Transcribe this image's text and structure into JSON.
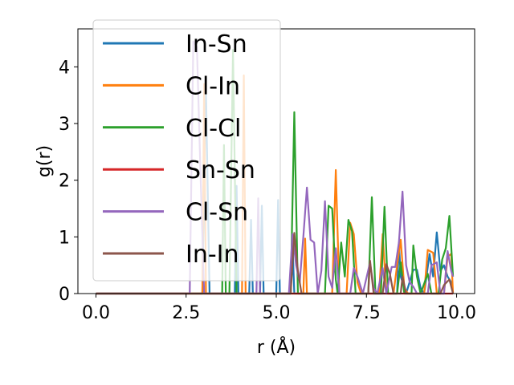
{
  "chart_data": {
    "type": "line",
    "xlabel": "r (Å)",
    "ylabel": "g(r)",
    "xlim": [
      -0.5,
      10.5
    ],
    "ylim": [
      0,
      4.67
    ],
    "xticks": [
      0.0,
      2.5,
      5.0,
      7.5,
      10.0
    ],
    "xtick_labels": [
      "0.0",
      "2.5",
      "5.0",
      "7.5",
      "10.0"
    ],
    "yticks": [
      0,
      1,
      2,
      3,
      4
    ],
    "ytick_labels": [
      "0",
      "1",
      "2",
      "3",
      "4"
    ],
    "grid": false,
    "legend_position": "top-left",
    "series": [
      {
        "name": "In-Sn",
        "color": "#1f77b4",
        "points": [
          [
            0,
            0
          ],
          [
            2.95,
            0
          ],
          [
            3.05,
            3.6
          ],
          [
            3.15,
            0
          ],
          [
            3.85,
            0
          ],
          [
            3.9,
            1.9
          ],
          [
            3.95,
            0
          ],
          [
            4.25,
            0
          ],
          [
            4.3,
            1.3
          ],
          [
            4.35,
            0
          ],
          [
            4.55,
            0
          ],
          [
            4.6,
            1.55
          ],
          [
            4.65,
            0
          ],
          [
            5.0,
            0
          ],
          [
            5.05,
            1.65
          ],
          [
            5.1,
            0
          ],
          [
            5.4,
            0
          ],
          [
            5.45,
            0.9
          ],
          [
            5.5,
            0
          ],
          [
            8.35,
            0
          ],
          [
            8.4,
            0.9
          ],
          [
            8.45,
            0.3
          ],
          [
            8.6,
            0
          ],
          [
            8.8,
            0.42
          ],
          [
            8.9,
            0.42
          ],
          [
            9.0,
            0.1
          ],
          [
            9.1,
            0
          ],
          [
            9.25,
            0.7
          ],
          [
            9.35,
            0.3
          ],
          [
            9.45,
            1.08
          ],
          [
            9.55,
            0.4
          ],
          [
            9.65,
            0.5
          ],
          [
            9.75,
            0.3
          ],
          [
            9.85,
            0.2
          ],
          [
            9.9,
            0
          ]
        ]
      },
      {
        "name": "Cl-In",
        "color": "#ff7f0e",
        "points": [
          [
            0,
            0
          ],
          [
            2.95,
            0
          ],
          [
            3.0,
            3.7
          ],
          [
            3.05,
            0
          ],
          [
            4.05,
            0
          ],
          [
            4.1,
            3.85
          ],
          [
            4.15,
            0
          ],
          [
            5.75,
            0
          ],
          [
            5.8,
            0.97
          ],
          [
            5.85,
            0
          ],
          [
            6.55,
            0
          ],
          [
            6.65,
            2.18
          ],
          [
            6.75,
            0
          ],
          [
            6.95,
            0
          ],
          [
            7.05,
            1.25
          ],
          [
            7.15,
            1.05
          ],
          [
            7.25,
            0.2
          ],
          [
            7.35,
            0
          ],
          [
            7.85,
            0
          ],
          [
            7.95,
            1.05
          ],
          [
            8.05,
            0
          ],
          [
            8.25,
            0
          ],
          [
            8.35,
            0.5
          ],
          [
            8.45,
            0.95
          ],
          [
            8.55,
            0.1
          ],
          [
            8.65,
            0
          ],
          [
            9.1,
            0
          ],
          [
            9.2,
            0.77
          ],
          [
            9.35,
            0.72
          ],
          [
            9.45,
            0
          ],
          [
            9.65,
            0
          ],
          [
            9.75,
            0.65
          ],
          [
            9.85,
            0.7
          ],
          [
            9.9,
            0
          ]
        ]
      },
      {
        "name": "Cl-Cl",
        "color": "#2ca02c",
        "points": [
          [
            0,
            0
          ],
          [
            3.5,
            0
          ],
          [
            3.55,
            2.62
          ],
          [
            3.6,
            0
          ],
          [
            3.7,
            0
          ],
          [
            3.8,
            4.3
          ],
          [
            3.9,
            0
          ],
          [
            5.4,
            0
          ],
          [
            5.5,
            3.2
          ],
          [
            5.6,
            0
          ],
          [
            6.35,
            0
          ],
          [
            6.45,
            1.55
          ],
          [
            6.55,
            1.5
          ],
          [
            6.65,
            0.25
          ],
          [
            6.7,
            0
          ],
          [
            6.8,
            0.9
          ],
          [
            6.9,
            0.3
          ],
          [
            7.0,
            1.3
          ],
          [
            7.1,
            1.1
          ],
          [
            7.2,
            0
          ],
          [
            7.55,
            0
          ],
          [
            7.65,
            1.7
          ],
          [
            7.75,
            0
          ],
          [
            7.9,
            0
          ],
          [
            8.0,
            1.53
          ],
          [
            8.1,
            0
          ],
          [
            8.35,
            0
          ],
          [
            8.45,
            0.55
          ],
          [
            8.55,
            0
          ],
          [
            8.75,
            0
          ],
          [
            8.8,
            0.85
          ],
          [
            8.9,
            0.3
          ],
          [
            9.0,
            0
          ],
          [
            9.2,
            0.35
          ],
          [
            9.3,
            0
          ],
          [
            9.5,
            0
          ],
          [
            9.6,
            0.6
          ],
          [
            9.7,
            0.8
          ],
          [
            9.8,
            1.37
          ],
          [
            9.9,
            0.3
          ]
        ]
      },
      {
        "name": "Sn-Sn",
        "color": "#d62728",
        "points": [
          [
            0,
            0
          ],
          [
            9.9,
            0
          ]
        ]
      },
      {
        "name": "Cl-Sn",
        "color": "#9467bd",
        "points": [
          [
            0,
            0
          ],
          [
            2.6,
            0
          ],
          [
            2.7,
            4.45
          ],
          [
            2.8,
            4.35
          ],
          [
            2.9,
            2.1
          ],
          [
            3.0,
            0
          ],
          [
            4.45,
            0
          ],
          [
            4.5,
            1.68
          ],
          [
            4.55,
            0
          ],
          [
            5.35,
            0
          ],
          [
            5.45,
            1.05
          ],
          [
            5.55,
            0.5
          ],
          [
            5.65,
            0.2
          ],
          [
            5.75,
            1.0
          ],
          [
            5.85,
            1.87
          ],
          [
            5.95,
            0.95
          ],
          [
            6.05,
            0.9
          ],
          [
            6.15,
            0
          ],
          [
            6.25,
            0.4
          ],
          [
            6.35,
            1.63
          ],
          [
            6.45,
            0.3
          ],
          [
            6.55,
            0.1
          ],
          [
            6.65,
            0.8
          ],
          [
            6.75,
            0
          ],
          [
            7.05,
            0
          ],
          [
            7.15,
            0.45
          ],
          [
            7.25,
            0.3
          ],
          [
            7.4,
            0
          ],
          [
            7.6,
            0.55
          ],
          [
            7.7,
            0.1
          ],
          [
            7.8,
            0
          ],
          [
            7.95,
            0.45
          ],
          [
            8.05,
            0
          ],
          [
            8.2,
            0.47
          ],
          [
            8.3,
            0.47
          ],
          [
            8.4,
            0.9
          ],
          [
            8.5,
            1.8
          ],
          [
            8.6,
            0.5
          ],
          [
            8.7,
            0.2
          ],
          [
            8.8,
            0.12
          ],
          [
            8.9,
            0
          ],
          [
            9.2,
            0
          ],
          [
            9.3,
            0.5
          ],
          [
            9.45,
            0.55
          ],
          [
            9.55,
            0
          ],
          [
            9.65,
            0
          ],
          [
            9.75,
            0.75
          ],
          [
            9.85,
            0.4
          ],
          [
            9.9,
            0.3
          ]
        ]
      },
      {
        "name": "In-In",
        "color": "#8c564b",
        "points": [
          [
            0,
            0
          ],
          [
            5.4,
            0
          ],
          [
            5.5,
            1.07
          ],
          [
            5.6,
            0.4
          ],
          [
            5.7,
            0
          ],
          [
            7.55,
            0
          ],
          [
            7.6,
            0.58
          ],
          [
            7.7,
            0
          ],
          [
            7.95,
            0
          ],
          [
            8.05,
            0.52
          ],
          [
            8.15,
            0.35
          ],
          [
            8.25,
            0
          ],
          [
            8.45,
            0
          ],
          [
            8.5,
            0.3
          ],
          [
            8.6,
            0
          ],
          [
            9.55,
            0
          ],
          [
            9.65,
            0.15
          ],
          [
            9.8,
            0.25
          ],
          [
            9.9,
            0
          ]
        ]
      }
    ]
  }
}
